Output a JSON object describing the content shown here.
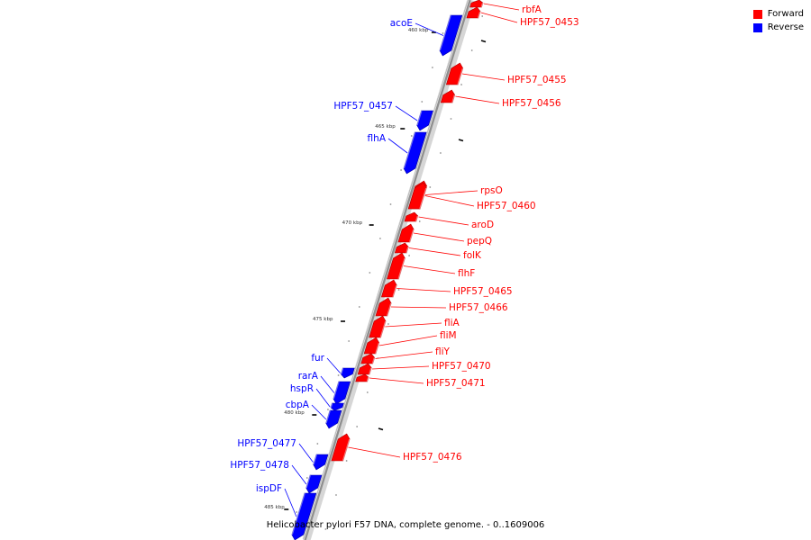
{
  "colors": {
    "forward": "#ff0000",
    "reverse": "#0000ff"
  },
  "legend": [
    {
      "label": "Forward",
      "strand": "forward"
    },
    {
      "label": "Reverse",
      "strand": "reverse"
    }
  ],
  "caption": "Helicobacter pylori F57 DNA, complete genome. - 0..1609006",
  "ticks": [
    "460 kbp",
    "465 kbp",
    "470 kbp",
    "475 kbp",
    "480 kbp",
    "485 kbp"
  ],
  "genes": [
    {
      "name": "rbfA",
      "strand": "forward"
    },
    {
      "name": "HPF57_0453",
      "strand": "forward"
    },
    {
      "name": "acoE",
      "strand": "reverse"
    },
    {
      "name": "HPF57_0455",
      "strand": "forward"
    },
    {
      "name": "HPF57_0456",
      "strand": "forward"
    },
    {
      "name": "HPF57_0457",
      "strand": "reverse"
    },
    {
      "name": "flhA",
      "strand": "reverse"
    },
    {
      "name": "rpsO",
      "strand": "forward"
    },
    {
      "name": "HPF57_0460",
      "strand": "forward"
    },
    {
      "name": "aroD",
      "strand": "forward"
    },
    {
      "name": "pepQ",
      "strand": "forward"
    },
    {
      "name": "folK",
      "strand": "forward"
    },
    {
      "name": "flhF",
      "strand": "forward"
    },
    {
      "name": "HPF57_0465",
      "strand": "forward"
    },
    {
      "name": "HPF57_0466",
      "strand": "forward"
    },
    {
      "name": "fliA",
      "strand": "forward"
    },
    {
      "name": "fliM",
      "strand": "forward"
    },
    {
      "name": "fliY",
      "strand": "forward"
    },
    {
      "name": "HPF57_0470",
      "strand": "forward"
    },
    {
      "name": "HPF57_0471",
      "strand": "forward"
    },
    {
      "name": "fur",
      "strand": "reverse"
    },
    {
      "name": "rarA",
      "strand": "reverse"
    },
    {
      "name": "hspR",
      "strand": "reverse"
    },
    {
      "name": "cbpA",
      "strand": "reverse"
    },
    {
      "name": "HPF57_0476",
      "strand": "forward"
    },
    {
      "name": "HPF57_0477",
      "strand": "reverse"
    },
    {
      "name": "HPF57_0478",
      "strand": "reverse"
    },
    {
      "name": "ispDF",
      "strand": "reverse"
    }
  ]
}
